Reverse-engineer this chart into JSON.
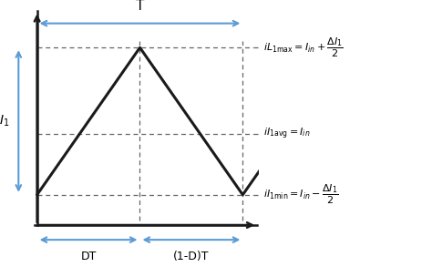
{
  "i_max": 2.0,
  "i_avg": 1.0,
  "i_min": 0.3,
  "D": 0.5,
  "T": 1.0,
  "waveform_color": "#1a1a1a",
  "arrow_color": "#5b9bd5",
  "dashed_color": "#666666",
  "background_color": "#ffffff",
  "label_DT": "DT",
  "label_1DT": "(1-D)T",
  "label_T": "T",
  "xlim": [
    -0.18,
    1.08
  ],
  "ylim": [
    -0.65,
    2.55
  ],
  "fig_width": 4.74,
  "fig_height": 3.04,
  "dpi": 100
}
